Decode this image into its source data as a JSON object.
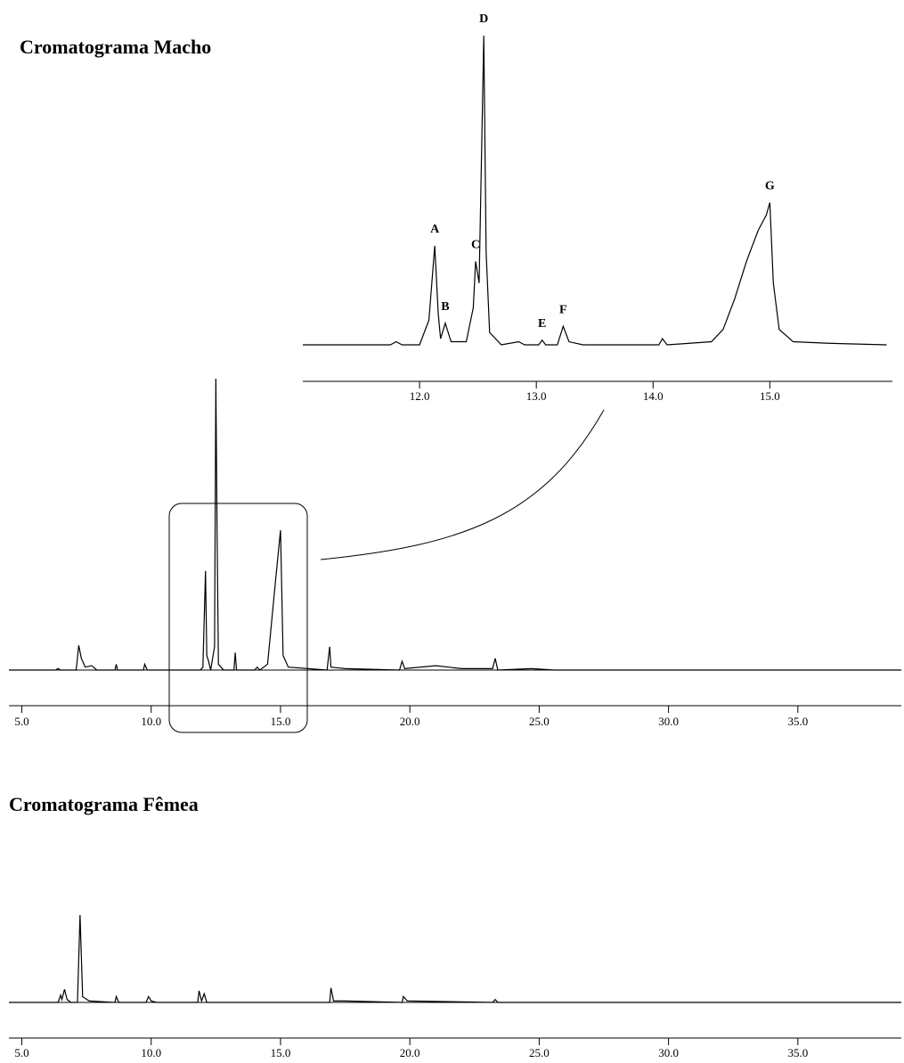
{
  "chart_data": [
    {
      "type": "line",
      "color": "#000000",
      "x": [
        11.0,
        11.75,
        11.8,
        11.85,
        12.0,
        12.08,
        12.13,
        12.16,
        12.18,
        12.22,
        12.27,
        12.4,
        12.46,
        12.48,
        12.51,
        12.55,
        12.57,
        12.6,
        12.7,
        12.85,
        12.9,
        13.02,
        13.05,
        13.08,
        13.18,
        13.23,
        13.28,
        13.4,
        14.05,
        14.08,
        14.12,
        14.5,
        14.6,
        14.7,
        14.8,
        14.9,
        14.97,
        15.0,
        15.03,
        15.08,
        15.2,
        15.5,
        16.0
      ],
      "values": [
        0,
        0,
        1,
        0,
        0,
        8,
        32,
        10,
        2,
        7,
        1,
        1,
        12,
        27,
        20,
        100,
        30,
        4,
        0,
        1,
        0,
        0,
        1.5,
        0,
        0,
        6,
        1,
        0,
        0,
        2,
        0,
        1,
        5,
        15,
        27,
        37,
        42,
        46,
        20,
        5,
        1,
        0.5,
        0
      ],
      "xlim": [
        11.0,
        16.05
      ],
      "ylim": [
        0,
        100
      ],
      "xticks": [
        {
          "value": 12,
          "label": "12.0"
        },
        {
          "value": 13,
          "label": "13.0"
        },
        {
          "value": 14,
          "label": "14.0"
        },
        {
          "value": 15,
          "label": "15.0"
        }
      ],
      "annotations": [
        {
          "text": "A",
          "x": 12.13,
          "y": 32
        },
        {
          "text": "B",
          "x": 12.22,
          "y": 7
        },
        {
          "text": "C",
          "x": 12.48,
          "y": 27
        },
        {
          "text": "D",
          "x": 12.55,
          "y": 100
        },
        {
          "text": "E",
          "x": 13.05,
          "y": 1.5
        },
        {
          "text": "F",
          "x": 13.23,
          "y": 6
        },
        {
          "text": "G",
          "x": 15.0,
          "y": 46
        }
      ]
    },
    {
      "type": "line",
      "title": "Cromatograma Macho",
      "color": "#000000",
      "x": [
        4.5,
        6.3,
        6.4,
        6.5,
        7.1,
        7.2,
        7.3,
        7.45,
        7.7,
        7.9,
        8.6,
        8.65,
        8.7,
        9.7,
        9.75,
        9.85,
        11.9,
        12.0,
        12.1,
        12.15,
        12.22,
        12.3,
        12.45,
        12.5,
        12.55,
        12.6,
        12.8,
        13.2,
        13.25,
        13.3,
        14.0,
        14.1,
        14.2,
        14.5,
        14.8,
        15.0,
        15.1,
        15.3,
        16.8,
        16.9,
        16.95,
        17.5,
        19.6,
        19.7,
        19.8,
        21.0,
        22.0,
        23.2,
        23.3,
        23.4,
        24.7,
        25.6,
        39.0
      ],
      "values": [
        0,
        0,
        0.5,
        0,
        0,
        8.5,
        4,
        1,
        1.5,
        0,
        0,
        2,
        0,
        0,
        2,
        0,
        0,
        1,
        34,
        5,
        3,
        0,
        8,
        100,
        45,
        2,
        0,
        0,
        6,
        0,
        0,
        1,
        0,
        2,
        30,
        48,
        5,
        1,
        0,
        8,
        1,
        0.5,
        0,
        3,
        0.5,
        1.5,
        0.5,
        0.5,
        4,
        0,
        0.5,
        0,
        0
      ],
      "xlim": [
        4.5,
        39.0
      ],
      "ylim": [
        0,
        100
      ],
      "xticks": [
        {
          "value": 5,
          "label": "5.0"
        },
        {
          "value": 10,
          "label": "10.0"
        },
        {
          "value": 15,
          "label": "15.0"
        },
        {
          "value": 20,
          "label": "20.0"
        },
        {
          "value": 25,
          "label": "25.0"
        },
        {
          "value": 30,
          "label": "30.0"
        },
        {
          "value": 35,
          "label": "35.0"
        }
      ]
    },
    {
      "type": "line",
      "title": "Cromatograma Fêmea",
      "color": "#000000",
      "x": [
        4.5,
        6.4,
        6.5,
        6.55,
        6.65,
        6.75,
        6.9,
        7.15,
        7.25,
        7.35,
        7.6,
        8.6,
        8.65,
        8.75,
        9.8,
        9.9,
        10.0,
        10.2,
        11.8,
        11.85,
        11.95,
        12.05,
        12.15,
        16.9,
        16.95,
        17.05,
        17.5,
        19.7,
        19.75,
        19.9,
        23.2,
        23.3,
        23.4,
        39.0
      ],
      "values": [
        0,
        0,
        2.5,
        1,
        4.5,
        1,
        0,
        0,
        30,
        2,
        0.5,
        0,
        2,
        0,
        0,
        2,
        0.5,
        0,
        0,
        4,
        0.5,
        3,
        0,
        0,
        5,
        0.5,
        0.5,
        0,
        2,
        0.5,
        0,
        1,
        0,
        0
      ],
      "xlim": [
        4.5,
        39.0
      ],
      "ylim": [
        0,
        100
      ],
      "xticks": [
        {
          "value": 5,
          "label": "5.0"
        },
        {
          "value": 10,
          "label": "10.0"
        },
        {
          "value": 15,
          "label": "15.0"
        },
        {
          "value": 20,
          "label": "20.0"
        },
        {
          "value": 25,
          "label": "25.0"
        },
        {
          "value": 30,
          "label": "30.0"
        },
        {
          "value": 35,
          "label": "35.0"
        }
      ]
    }
  ]
}
